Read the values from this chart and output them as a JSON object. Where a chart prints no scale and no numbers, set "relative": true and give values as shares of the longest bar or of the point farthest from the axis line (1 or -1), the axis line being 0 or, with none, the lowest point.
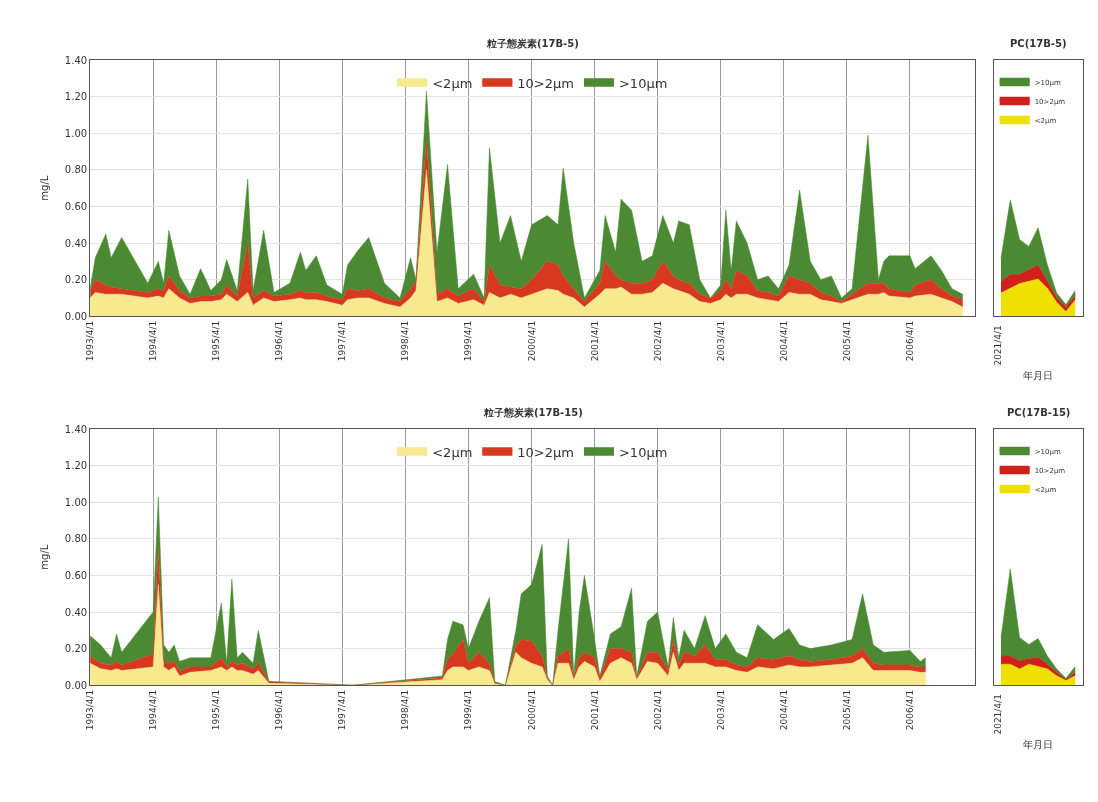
{
  "chart_data": [
    {
      "type": "area",
      "stacked": true,
      "title": "粒子態炭素(17B-5)",
      "ylabel": "mg/L",
      "grid": true,
      "legend": "top",
      "xlim": [
        "1993-04-01",
        "2007-04-15"
      ],
      "xticks": [
        {
          "value": "1993-04-01",
          "label": "1993/4/1"
        },
        {
          "value": "1994-04-01",
          "label": "1994/4/1"
        },
        {
          "value": "1995-04-01",
          "label": "1995/4/1"
        },
        {
          "value": "1996-04-01",
          "label": "1996/4/1"
        },
        {
          "value": "1997-04-01",
          "label": "1997/4/1"
        },
        {
          "value": "1998-04-01",
          "label": "1998/4/1"
        },
        {
          "value": "1999-04-01",
          "label": "1999/4/1"
        },
        {
          "value": "2000-04-01",
          "label": "2000/4/1"
        },
        {
          "value": "2001-04-01",
          "label": "2001/4/1"
        },
        {
          "value": "2002-04-01",
          "label": "2002/4/1"
        },
        {
          "value": "2003-04-01",
          "label": "2003/4/1"
        },
        {
          "value": "2004-04-01",
          "label": "2004/4/1"
        },
        {
          "value": "2005-04-01",
          "label": "2005/4/1"
        },
        {
          "value": "2006-04-01",
          "label": "2006/4/1"
        }
      ],
      "ylim": [
        0,
        1.4
      ],
      "yticks": [
        {
          "value": 0,
          "label": "0.00"
        },
        {
          "value": 0.2,
          "label": "0.20"
        },
        {
          "value": 0.4,
          "label": "0.40"
        },
        {
          "value": 0.6,
          "label": "0.60"
        },
        {
          "value": 0.8,
          "label": "0.80"
        },
        {
          "value": 1.0,
          "label": "1.00"
        },
        {
          "value": 1.2,
          "label": "1.20"
        },
        {
          "value": 1.4,
          "label": "1.40"
        }
      ],
      "x": [
        "1993-04",
        "1993-05",
        "1993-07",
        "1993-08",
        "1993-10",
        "1994-03",
        "1994-05",
        "1994-06",
        "1994-07",
        "1994-09",
        "1994-11",
        "1995-01",
        "1995-03",
        "1995-05",
        "1995-06",
        "1995-08",
        "1995-10",
        "1995-11",
        "1996-01",
        "1996-03",
        "1996-06",
        "1996-08",
        "1996-09",
        "1996-11",
        "1997-01",
        "1997-04",
        "1997-05",
        "1997-07",
        "1997-09",
        "1997-12",
        "1998-03",
        "1998-05",
        "1998-06",
        "1998-08",
        "1998-10",
        "1998-12",
        "1999-02",
        "1999-05",
        "1999-07",
        "1999-08",
        "1999-10",
        "1999-12",
        "2000-02",
        "2000-04",
        "2000-07",
        "2000-09",
        "2000-10",
        "2000-12",
        "2001-02",
        "2001-05",
        "2001-06",
        "2001-08",
        "2001-09",
        "2001-11",
        "2002-01",
        "2002-03",
        "2002-05",
        "2002-07",
        "2002-08",
        "2002-10",
        "2002-12",
        "2003-02",
        "2003-04",
        "2003-05",
        "2003-06",
        "2003-07",
        "2003-09",
        "2003-11",
        "2004-01",
        "2004-03",
        "2004-05",
        "2004-07",
        "2004-09",
        "2004-11",
        "2005-01",
        "2005-03",
        "2005-05",
        "2005-08",
        "2005-10",
        "2005-11",
        "2005-12",
        "2006-04",
        "2006-05",
        "2006-08",
        "2006-10",
        "2006-12",
        "2007-02"
      ],
      "series": [
        {
          "name": "<2μm",
          "color": "#f6e98e",
          "values": [
            0.1,
            0.13,
            0.12,
            0.12,
            0.12,
            0.1,
            0.11,
            0.1,
            0.15,
            0.1,
            0.07,
            0.08,
            0.08,
            0.09,
            0.12,
            0.08,
            0.13,
            0.06,
            0.1,
            0.08,
            0.09,
            0.1,
            0.09,
            0.09,
            0.08,
            0.06,
            0.09,
            0.1,
            0.1,
            0.07,
            0.05,
            0.1,
            0.14,
            0.8,
            0.08,
            0.1,
            0.07,
            0.09,
            0.06,
            0.13,
            0.1,
            0.12,
            0.1,
            0.12,
            0.15,
            0.14,
            0.12,
            0.1,
            0.05,
            0.12,
            0.15,
            0.15,
            0.16,
            0.12,
            0.12,
            0.13,
            0.18,
            0.15,
            0.14,
            0.12,
            0.08,
            0.07,
            0.09,
            0.12,
            0.1,
            0.12,
            0.12,
            0.1,
            0.09,
            0.08,
            0.13,
            0.12,
            0.12,
            0.09,
            0.08,
            0.07,
            0.09,
            0.12,
            0.12,
            0.13,
            0.11,
            0.1,
            0.11,
            0.12,
            0.1,
            0.08,
            0.05
          ]
        },
        {
          "name": "10>2μm",
          "color": "#d6391f",
          "values": [
            0.04,
            0.07,
            0.05,
            0.04,
            0.03,
            0.03,
            0.04,
            0.04,
            0.07,
            0.04,
            0.03,
            0.03,
            0.03,
            0.03,
            0.05,
            0.03,
            0.27,
            0.04,
            0.04,
            0.03,
            0.03,
            0.04,
            0.04,
            0.04,
            0.03,
            0.03,
            0.06,
            0.04,
            0.05,
            0.03,
            0.03,
            0.05,
            0.05,
            0.17,
            0.04,
            0.05,
            0.04,
            0.06,
            0.02,
            0.15,
            0.07,
            0.04,
            0.05,
            0.08,
            0.15,
            0.14,
            0.1,
            0.05,
            0.03,
            0.06,
            0.15,
            0.07,
            0.04,
            0.06,
            0.06,
            0.07,
            0.12,
            0.07,
            0.06,
            0.06,
            0.04,
            0.03,
            0.05,
            0.08,
            0.05,
            0.13,
            0.1,
            0.04,
            0.04,
            0.03,
            0.09,
            0.08,
            0.06,
            0.04,
            0.03,
            0.01,
            0.03,
            0.06,
            0.06,
            0.05,
            0.04,
            0.03,
            0.06,
            0.08,
            0.05,
            0.03,
            0.04
          ]
        },
        {
          "name": ">10μm",
          "color": "#4b8a32",
          "values": [
            0.01,
            0.12,
            0.28,
            0.16,
            0.28,
            0.05,
            0.15,
            0.04,
            0.25,
            0.08,
            0.02,
            0.15,
            0.03,
            0.08,
            0.14,
            0.03,
            0.35,
            0.04,
            0.33,
            0.02,
            0.06,
            0.21,
            0.12,
            0.2,
            0.06,
            0.03,
            0.13,
            0.22,
            0.28,
            0.08,
            0.02,
            0.17,
            0.01,
            0.26,
            0.23,
            0.68,
            0.04,
            0.08,
            0.02,
            0.64,
            0.23,
            0.39,
            0.15,
            0.3,
            0.25,
            0.22,
            0.59,
            0.25,
            0.02,
            0.07,
            0.25,
            0.13,
            0.44,
            0.4,
            0.12,
            0.13,
            0.25,
            0.18,
            0.32,
            0.32,
            0.08,
            0.0,
            0.03,
            0.38,
            0.1,
            0.27,
            0.18,
            0.06,
            0.09,
            0.04,
            0.06,
            0.49,
            0.12,
            0.07,
            0.11,
            0.02,
            0.03,
            0.81,
            0.02,
            0.12,
            0.18,
            0.2,
            0.09,
            0.13,
            0.1,
            0.04,
            0.03
          ]
        }
      ]
    },
    {
      "type": "area",
      "stacked": true,
      "relative": true,
      "title": "PC(17B-5)",
      "xlabel": "年月日",
      "legend": "top left",
      "tick_labels": false,
      "annotations": [
        "2021/4/1"
      ],
      "categories": [
        null,
        null,
        null,
        null,
        null,
        null,
        null,
        null,
        null
      ],
      "series": [
        {
          "name": "<2μm",
          "color": "#f0e000",
          "values": [
            0.2,
            0.24,
            0.28,
            0.3,
            0.32,
            0.24,
            0.12,
            0.04,
            0.14
          ]
        },
        {
          "name": "10>2μm",
          "color": "#d0201c",
          "values": [
            0.1,
            0.12,
            0.08,
            0.1,
            0.12,
            0.06,
            0.04,
            0.04,
            0.04
          ]
        },
        {
          "name": ">10μm",
          "color": "#4b8a32",
          "values": [
            0.2,
            0.64,
            0.3,
            0.2,
            0.32,
            0.14,
            0.04,
            0.02,
            0.04
          ]
        }
      ]
    },
    {
      "type": "area",
      "stacked": true,
      "title": "粒子態炭素(17B-15)",
      "ylabel": "mg/L",
      "grid": true,
      "legend": "top",
      "xlim": [
        "1993-04-01",
        "2007-04-15"
      ],
      "xticks": [
        {
          "value": "1993-04-01",
          "label": "1993/4/1"
        },
        {
          "value": "1994-04-01",
          "label": "1994/4/1"
        },
        {
          "value": "1995-04-01",
          "label": "1995/4/1"
        },
        {
          "value": "1996-04-01",
          "label": "1996/4/1"
        },
        {
          "value": "1997-04-01",
          "label": "1997/4/1"
        },
        {
          "value": "1998-04-01",
          "label": "1998/4/1"
        },
        {
          "value": "1999-04-01",
          "label": "1999/4/1"
        },
        {
          "value": "2000-04-01",
          "label": "2000/4/1"
        },
        {
          "value": "2001-04-01",
          "label": "2001/4/1"
        },
        {
          "value": "2002-04-01",
          "label": "2002/4/1"
        },
        {
          "value": "2003-04-01",
          "label": "2003/4/1"
        },
        {
          "value": "2004-04-01",
          "label": "2004/4/1"
        },
        {
          "value": "2005-04-01",
          "label": "2005/4/1"
        },
        {
          "value": "2006-04-01",
          "label": "2006/4/1"
        }
      ],
      "ylim": [
        0,
        1.4
      ],
      "yticks": [
        {
          "value": 0,
          "label": "0.00"
        },
        {
          "value": 0.2,
          "label": "0.20"
        },
        {
          "value": 0.4,
          "label": "0.40"
        },
        {
          "value": 0.6,
          "label": "0.60"
        },
        {
          "value": 0.8,
          "label": "0.80"
        },
        {
          "value": 1.0,
          "label": "1.00"
        },
        {
          "value": 1.2,
          "label": "1.20"
        },
        {
          "value": 1.4,
          "label": "1.40"
        }
      ],
      "x": [
        "1993-04",
        "1993-06",
        "1993-08",
        "1993-09",
        "1993-10",
        "1994-04",
        "1994-05",
        "1994-06",
        "1994-07",
        "1994-08",
        "1994-09",
        "1994-11",
        "1995-03",
        "1995-05",
        "1995-06",
        "1995-07",
        "1995-08",
        "1995-09",
        "1995-11",
        "1995-12",
        "1996-02",
        "1997-06",
        "1998-11",
        "1998-12",
        "1999-01",
        "1999-03",
        "1999-04",
        "1999-06",
        "1999-08",
        "1999-09",
        "1999-11",
        "2000-01",
        "2000-02",
        "2000-04",
        "2000-06",
        "2000-07",
        "2000-08",
        "2000-09",
        "2000-11",
        "2000-12",
        "2001-01",
        "2001-02",
        "2001-04",
        "2001-05",
        "2001-07",
        "2001-09",
        "2001-11",
        "2001-12",
        "2002-02",
        "2002-04",
        "2002-06",
        "2002-07",
        "2002-08",
        "2002-09",
        "2002-11",
        "2003-01",
        "2003-03",
        "2003-05",
        "2003-07",
        "2003-09",
        "2003-11",
        "2004-02",
        "2004-05",
        "2004-07",
        "2004-09",
        "2005-01",
        "2005-05",
        "2005-07",
        "2005-09",
        "2005-11",
        "2006-04",
        "2006-06",
        "2006-07"
      ],
      "series": [
        {
          "name": "<2μm",
          "color": "#f6e98e",
          "values": [
            0.12,
            0.09,
            0.08,
            0.09,
            0.08,
            0.1,
            0.55,
            0.1,
            0.08,
            0.1,
            0.05,
            0.07,
            0.08,
            0.1,
            0.08,
            0.1,
            0.08,
            0.08,
            0.06,
            0.08,
            0.01,
            null,
            0.03,
            0.08,
            0.1,
            0.1,
            0.08,
            0.1,
            0.08,
            0.01,
            null,
            0.18,
            0.15,
            0.12,
            0.1,
            0.03,
            null,
            0.12,
            0.12,
            0.03,
            0.1,
            0.13,
            0.1,
            0.02,
            0.12,
            0.15,
            0.12,
            0.03,
            0.13,
            0.12,
            0.05,
            0.18,
            0.08,
            0.12,
            0.12,
            0.12,
            0.1,
            0.1,
            0.08,
            0.07,
            0.1,
            0.09,
            0.11,
            0.1,
            0.1,
            0.11,
            0.12,
            0.15,
            0.08,
            0.08,
            0.08,
            0.07,
            0.07
          ]
        },
        {
          "name": "10>2μm",
          "color": "#d6391f",
          "values": [
            0.04,
            0.03,
            0.03,
            0.04,
            0.03,
            0.07,
            0.2,
            0.03,
            0.04,
            0.03,
            0.03,
            0.03,
            0.02,
            0.05,
            0.02,
            0.03,
            0.03,
            0.04,
            0.03,
            0.04,
            0.01,
            null,
            0.01,
            0.06,
            0.07,
            0.15,
            0.04,
            0.08,
            0.04,
            0.0,
            null,
            0.04,
            0.1,
            0.12,
            0.06,
            0.01,
            null,
            0.04,
            0.08,
            0.01,
            0.05,
            0.05,
            0.05,
            0.02,
            0.08,
            0.05,
            0.06,
            0.01,
            0.05,
            0.06,
            0.03,
            0.07,
            0.03,
            0.06,
            0.04,
            0.1,
            0.04,
            0.04,
            0.03,
            0.03,
            0.05,
            0.05,
            0.05,
            0.04,
            0.03,
            0.03,
            0.04,
            0.05,
            0.04,
            0.03,
            0.03,
            0.03,
            0.03
          ]
        },
        {
          "name": ">10μm",
          "color": "#4b8a32",
          "values": [
            0.11,
            0.1,
            0.04,
            0.15,
            0.07,
            0.23,
            0.28,
            0.09,
            0.06,
            0.09,
            0.05,
            0.05,
            0.05,
            0.3,
            0.02,
            0.45,
            0.04,
            0.06,
            0.03,
            0.18,
            0.0,
            null,
            0.01,
            0.11,
            0.18,
            0.08,
            0.08,
            0.17,
            0.36,
            0.01,
            null,
            0.08,
            0.25,
            0.31,
            0.61,
            0.01,
            null,
            0.14,
            0.6,
            0.01,
            0.25,
            0.42,
            0.1,
            0.01,
            0.08,
            0.12,
            0.35,
            0.01,
            0.17,
            0.22,
            0.02,
            0.12,
            0.04,
            0.12,
            0.04,
            0.16,
            0.06,
            0.14,
            0.07,
            0.05,
            0.18,
            0.11,
            0.15,
            0.08,
            0.07,
            0.08,
            0.09,
            0.3,
            0.1,
            0.07,
            0.08,
            0.03,
            0.05
          ]
        }
      ]
    },
    {
      "type": "area",
      "stacked": true,
      "relative": true,
      "title": "PC(17B-15)",
      "xlabel": "年月日",
      "legend": "top left",
      "tick_labels": false,
      "annotations": [
        "2021/4/1"
      ],
      "categories": [
        null,
        null,
        null,
        null,
        null,
        null,
        null,
        null,
        null
      ],
      "series": [
        {
          "name": "<2μm",
          "color": "#f0e000",
          "values": [
            0.18,
            0.18,
            0.14,
            0.18,
            0.16,
            0.14,
            0.08,
            0.04,
            0.08
          ]
        },
        {
          "name": "10>2μm",
          "color": "#d0201c",
          "values": [
            0.07,
            0.07,
            0.07,
            0.05,
            0.08,
            0.04,
            0.03,
            0.01,
            0.03
          ]
        },
        {
          "name": ">10μm",
          "color": "#4b8a32",
          "values": [
            0.16,
            0.75,
            0.2,
            0.12,
            0.16,
            0.07,
            0.03,
            0.01,
            0.05
          ]
        }
      ]
    }
  ]
}
